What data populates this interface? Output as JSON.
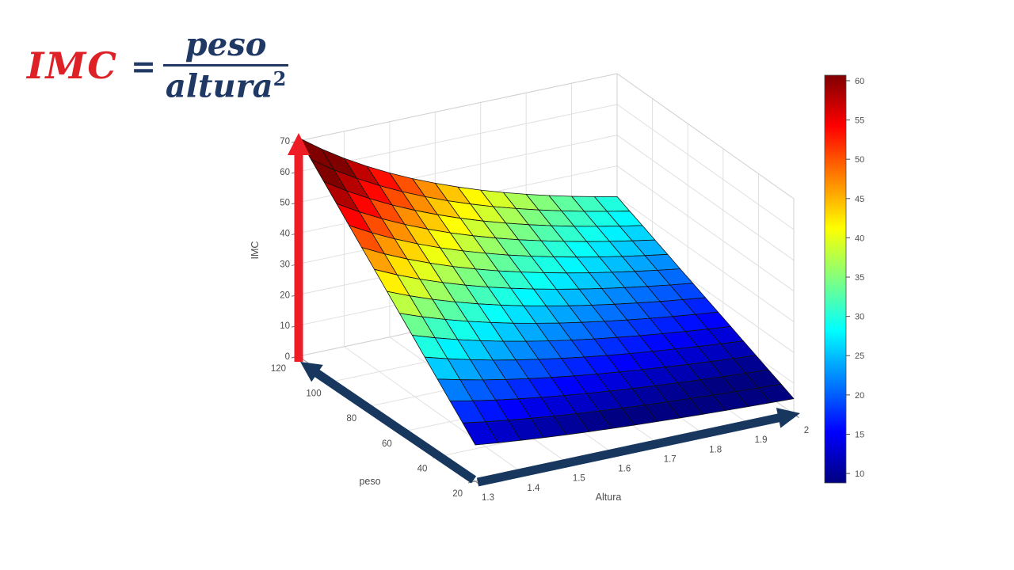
{
  "formula": {
    "lhs": "IMC",
    "equals": "=",
    "numerator": "peso",
    "denominator": "altura",
    "exponent": "2",
    "lhs_color": "#dd2127",
    "rhs_color": "#1f3864"
  },
  "chart_data": {
    "type": "surface",
    "title": "",
    "formula_text": "IMC = peso / altura^2",
    "x_axis": {
      "label": "Altura",
      "min": 1.3,
      "max": 2.0,
      "tick_values": [
        1.3,
        1.4,
        1.5,
        1.6,
        1.7,
        1.8,
        1.9,
        2
      ],
      "tick_labels": [
        "1.3",
        "1.4",
        "1.5",
        "1.6",
        "1.7",
        "1.8",
        "1.9",
        "2"
      ]
    },
    "y_axis": {
      "label": "peso",
      "min": 20,
      "max": 120,
      "tick_values": [
        20,
        40,
        60,
        80,
        100,
        120
      ],
      "tick_labels": [
        "20",
        "40",
        "60",
        "80",
        "100",
        "120"
      ]
    },
    "z_axis": {
      "label": "IMC",
      "min": 0,
      "max": 70,
      "tick_values": [
        0,
        10,
        20,
        30,
        40,
        50,
        60,
        70
      ],
      "tick_labels": [
        "0",
        "10",
        "20",
        "30",
        "40",
        "50",
        "60",
        "70"
      ]
    },
    "grid_points": 15,
    "z_function": "z = peso / altura^2",
    "surface_corner_values": {
      "altura_1.3_peso_120": 71.0,
      "altura_1.3_peso_20": 11.8,
      "altura_2.0_peso_20": 5.0,
      "altura_2.0_peso_120": 30.0
    },
    "colormap": "jet",
    "color_limits": [
      8.8,
      60.7
    ],
    "colorbar": {
      "tick_values": [
        60,
        55,
        50,
        45,
        40,
        35,
        30,
        25,
        20,
        15,
        10
      ],
      "tick_labels": [
        "60",
        "55",
        "50",
        "45",
        "40",
        "35",
        "30",
        "25",
        "20",
        "15",
        "10"
      ]
    },
    "grid": true,
    "legend_position": "none"
  },
  "annotations": {
    "z_axis_arrow_color": "#ee1c25",
    "xy_axis_arrow_color": "#17375e"
  },
  "colors": {
    "background": "#ffffff",
    "grid_line": "#e0e0e0",
    "tick_text": "#4d4d4d",
    "mesh_edge": "#111111"
  }
}
